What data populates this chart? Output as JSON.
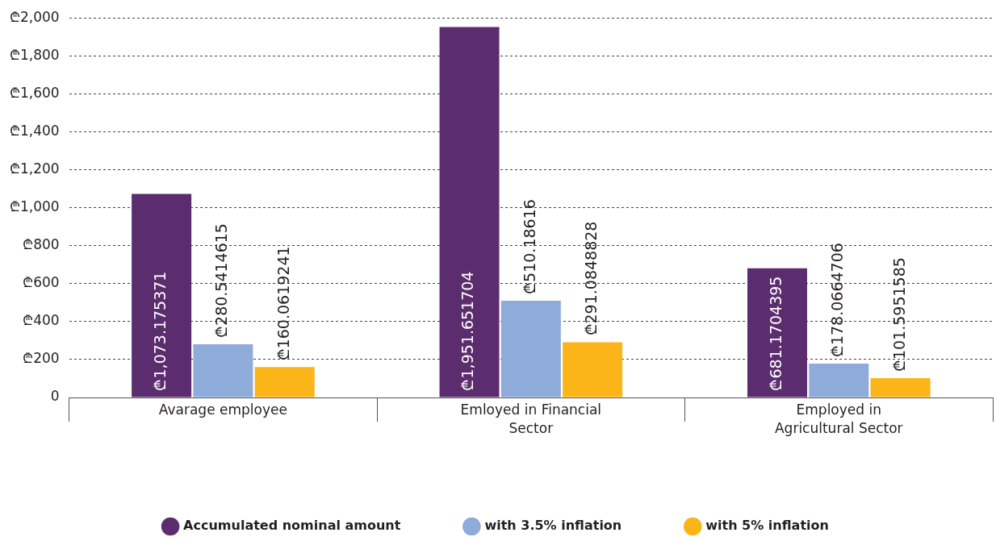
{
  "chart_data": {
    "type": "bar",
    "categories": [
      "Avarage employee",
      "Emloyed in Financial Sector",
      "Employed in Agricultural Sector"
    ],
    "series": [
      {
        "name": "Accumulated nominal amount",
        "color": "#5c2d6e",
        "values": [
          1073.175371,
          1951.651704,
          681.1704395
        ],
        "value_labels": [
          "₾1,073.175371",
          "₾1,951.651704",
          "₾681.1704395"
        ]
      },
      {
        "name": "with 3.5% inflation",
        "color": "#8eabd9",
        "values": [
          280.5414615,
          510.18616,
          178.0664706
        ],
        "value_labels": [
          "₾280.5414615",
          "₾510.18616",
          "₾178.0664706"
        ]
      },
      {
        "name": "with 5% inflation",
        "color": "#fbb518",
        "values": [
          160.0619241,
          291.0848828,
          101.5951585
        ],
        "value_labels": [
          "₾160.0619241",
          "₾291.0848828",
          "₾101.5951585"
        ]
      }
    ],
    "ylim": [
      0,
      2000
    ],
    "yticks": [
      0,
      {
        "value": 200,
        "label": "₾200"
      },
      {
        "value": 400,
        "label": "₾400"
      },
      {
        "value": 600,
        "label": "₾600"
      },
      {
        "value": 800,
        "label": "₾800"
      },
      {
        "value": 1000,
        "label": "₾1,000"
      },
      {
        "value": 1200,
        "label": "₾1,200"
      },
      {
        "value": 1400,
        "label": "₾1,400"
      },
      {
        "value": 1600,
        "label": "₾1,600"
      },
      {
        "value": 1800,
        "label": "₾1,800"
      },
      {
        "value": 2000,
        "label": "₾2,000"
      }
    ],
    "grid": "y",
    "legend": "bottom",
    "marker": "circle"
  }
}
